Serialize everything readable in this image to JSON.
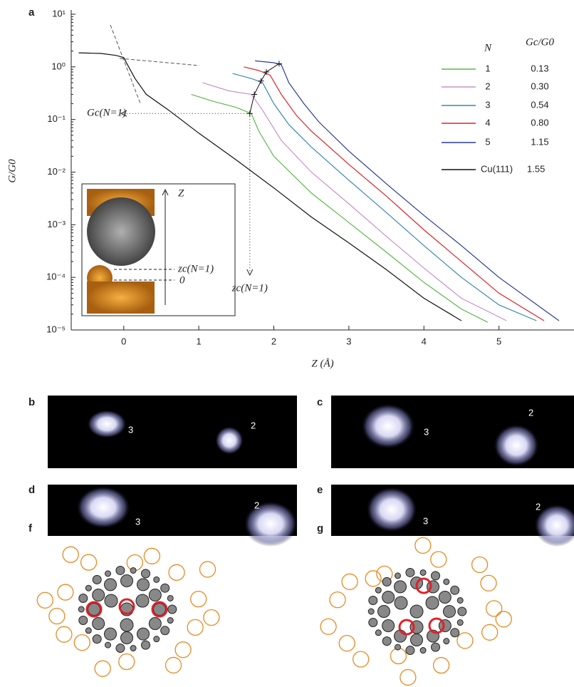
{
  "panel_labels": [
    "a",
    "b",
    "c",
    "d",
    "e",
    "f",
    "g"
  ],
  "chart_data": {
    "type": "line",
    "log_y": true,
    "y_label": "G/G0",
    "x_label": "Z (Å)",
    "xlim": [
      -0.7,
      6.0
    ],
    "ylim": [
      1e-05,
      10
    ],
    "xticks": [
      0,
      1,
      2,
      3,
      4,
      5
    ],
    "yticks": [
      {
        "value": 10,
        "label": "10¹"
      },
      {
        "value": 1,
        "label": "10⁰"
      },
      {
        "value": 0.1,
        "label": "10⁻¹"
      },
      {
        "value": 0.01,
        "label": "10⁻²"
      },
      {
        "value": 0.001,
        "label": "10⁻³"
      },
      {
        "value": 0.0001,
        "label": "10⁻⁴"
      },
      {
        "value": 1e-05,
        "label": "10⁻⁵"
      }
    ],
    "legend_header": [
      "N",
      "Gc/G0"
    ],
    "annotations": [
      "Gc(N=1)",
      "zc(N=1)"
    ],
    "inset_labels": [
      "Z",
      "zc(N=1)",
      "0"
    ],
    "series": [
      {
        "name": "1",
        "color": "#5cb84a",
        "gc": 0.13,
        "contact_z": 1.68,
        "x": [
          0.9,
          1.2,
          1.5,
          1.7,
          1.8,
          2,
          2.5,
          3,
          3.5,
          4,
          4.5,
          4.85
        ],
        "values": [
          0.3,
          0.22,
          0.17,
          0.13,
          0.06,
          0.02,
          0.004,
          0.0011,
          0.0003,
          8e-05,
          2.5e-05,
          1.4e-05
        ]
      },
      {
        "name": "2",
        "color": "#c990c8",
        "gc": 0.3,
        "gc_label": "0.30",
        "contact_z": 1.74,
        "x": [
          1.05,
          1.4,
          1.7,
          1.85,
          2.1,
          2.5,
          3,
          3.5,
          4,
          4.5,
          5.1
        ],
        "values": [
          0.5,
          0.35,
          0.3,
          0.15,
          0.04,
          0.01,
          0.0025,
          0.0006,
          0.00015,
          4e-05,
          1.5e-05
        ]
      },
      {
        "name": "3",
        "color": "#3a86b4",
        "gc": 0.54,
        "contact_z": 1.83,
        "x": [
          1.45,
          1.7,
          1.85,
          2,
          2.2,
          2.5,
          3,
          3.5,
          4,
          4.5,
          5,
          5.5
        ],
        "values": [
          0.75,
          0.6,
          0.5,
          0.2,
          0.08,
          0.03,
          0.007,
          0.0017,
          0.0004,
          0.0001,
          3e-05,
          1.5e-05
        ]
      },
      {
        "name": "4",
        "color": "#e0202a",
        "gc": 0.8,
        "gc_label": "0.80",
        "contact_z": 1.9,
        "x": [
          1.6,
          1.8,
          1.95,
          2.1,
          2.3,
          2.5,
          3,
          3.5,
          4,
          4.5,
          5,
          5.6
        ],
        "values": [
          1,
          0.85,
          0.7,
          0.3,
          0.12,
          0.06,
          0.014,
          0.0035,
          0.0008,
          0.0002,
          5e-05,
          1.5e-05
        ]
      },
      {
        "name": "5",
        "color": "#2b3a9a",
        "gc": 1.15,
        "contact_z": 2.07,
        "x": [
          1.75,
          2,
          2.1,
          2.2,
          2.4,
          2.6,
          3,
          3.5,
          4,
          4.5,
          5,
          5.8
        ],
        "values": [
          1.3,
          1.2,
          1.1,
          0.5,
          0.2,
          0.09,
          0.025,
          0.006,
          0.0015,
          0.0004,
          0.0001,
          1.5e-05
        ]
      },
      {
        "name": "Cu(111)",
        "color": "#111111",
        "gc": 1.55,
        "x": [
          -0.6,
          -0.3,
          -0.1,
          0,
          0.05,
          0.15,
          0.3,
          0.6,
          1,
          1.5,
          2,
          2.5,
          3,
          3.5,
          4,
          4.5
        ],
        "values": [
          1.85,
          1.8,
          1.65,
          1.5,
          1.1,
          0.6,
          0.3,
          0.15,
          0.055,
          0.017,
          0.005,
          0.0014,
          0.00045,
          0.00014,
          4e-05,
          1.5e-05
        ]
      }
    ]
  },
  "stm_images": [
    {
      "numbers": [
        "3",
        "2"
      ]
    },
    {
      "numbers": [
        "3",
        "2"
      ]
    },
    {
      "numbers": [
        "3",
        "2"
      ]
    },
    {
      "numbers": [
        "3",
        "2"
      ]
    }
  ]
}
